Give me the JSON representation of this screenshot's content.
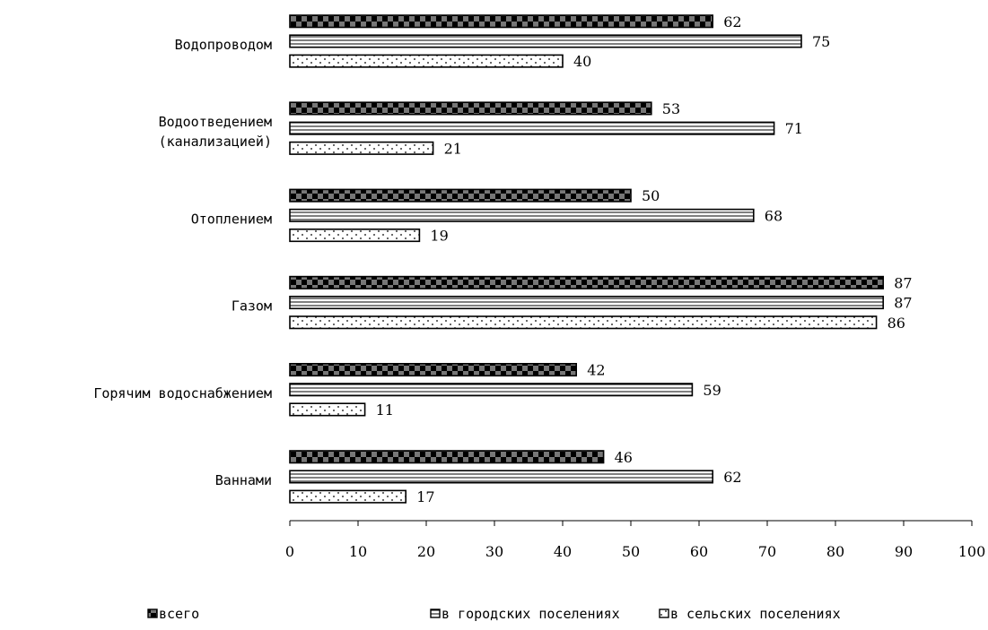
{
  "chart_data": {
    "type": "bar",
    "orientation": "horizontal",
    "categories": [
      [
        "Водопроводом"
      ],
      [
        "Водоотведением",
        "(канализацией)"
      ],
      [
        "Отоплением"
      ],
      [
        "Газом"
      ],
      [
        "Горячим  водоснабжением"
      ],
      [
        "Ваннами"
      ]
    ],
    "series": [
      {
        "name": "всего",
        "values": [
          62,
          53,
          50,
          87,
          42,
          46
        ]
      },
      {
        "name": "в городских поселениях",
        "values": [
          75,
          71,
          68,
          87,
          59,
          62
        ]
      },
      {
        "name": "в сельских поселениях",
        "values": [
          40,
          21,
          19,
          86,
          11,
          17
        ]
      }
    ],
    "xlim": [
      0,
      100
    ],
    "xticks": [
      0,
      10,
      20,
      30,
      40,
      50,
      60,
      70,
      80,
      90,
      100
    ],
    "grid": false,
    "legend_position": "bottom",
    "data_labels": true
  }
}
